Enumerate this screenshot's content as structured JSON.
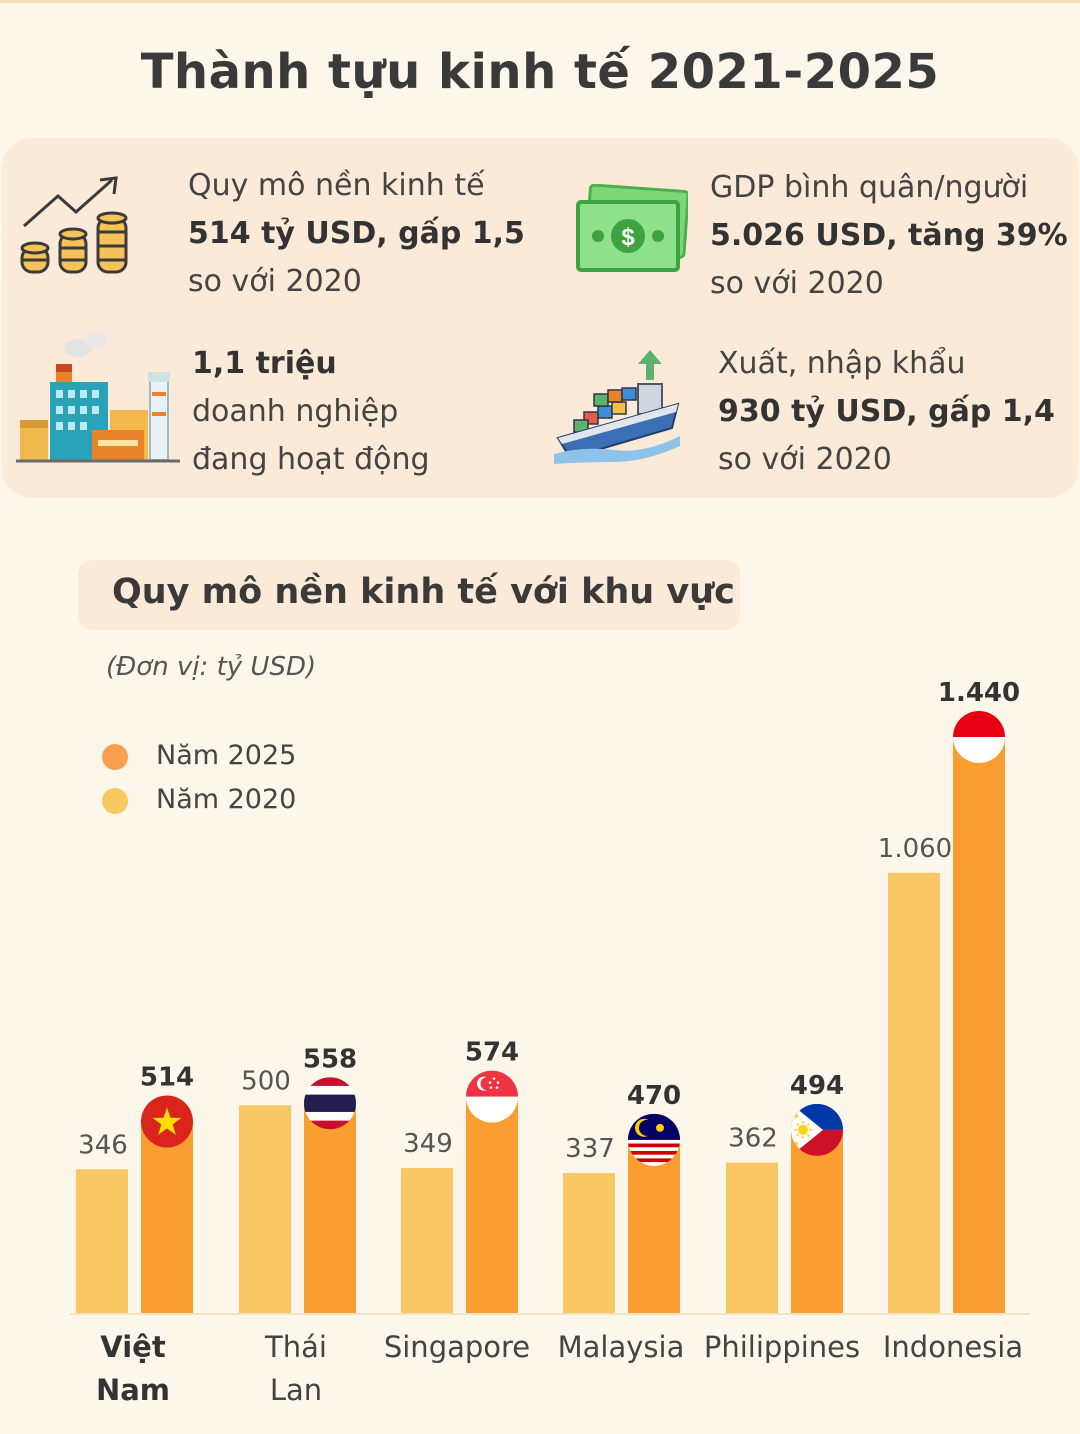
{
  "title": "Thành tựu kinh tế 2021-2025",
  "stats": [
    {
      "label": "Quy mô nền kinh tế",
      "value": "514 tỷ USD, gấp 1,5",
      "note": "so với 2020",
      "icon": "coins-growth-icon"
    },
    {
      "label": "GDP bình quân/người",
      "value": "5.026 USD, tăng 39%",
      "note": "so với 2020",
      "icon": "money-bill-icon"
    },
    {
      "label": "doanh nghiệp",
      "value": "1,1 triệu",
      "note": "đang hoạt động",
      "icon": "factory-icon"
    },
    {
      "label": "Xuất, nhập khẩu",
      "value": "930 tỷ USD, gấp 1,4",
      "note": "so với 2020",
      "icon": "cargo-ship-icon"
    }
  ],
  "chart_data": {
    "type": "bar",
    "title": "Quy mô nền kinh tế với khu vực",
    "unit": "(Đơn vị: tỷ USD)",
    "categories": [
      "Việt Nam",
      "Thái Lan",
      "Singapore",
      "Malaysia",
      "Philippines",
      "Indonesia"
    ],
    "category_lines": [
      [
        "Việt",
        "Nam"
      ],
      [
        "Thái",
        "Lan"
      ],
      [
        "Singapore"
      ],
      [
        "Malaysia"
      ],
      [
        "Philippines"
      ],
      [
        "Indonesia"
      ]
    ],
    "series": [
      {
        "name": "Năm 2020",
        "values": [
          346,
          500,
          349,
          337,
          362,
          1060
        ],
        "labels": [
          "346",
          "500",
          "349",
          "337",
          "362",
          "1.060"
        ],
        "color": "#f9c764"
      },
      {
        "name": "Năm 2025",
        "values": [
          514,
          558,
          574,
          470,
          494,
          1440
        ],
        "labels": [
          "514",
          "558",
          "574",
          "470",
          "494",
          "1.440"
        ],
        "color": "#fa9e32"
      }
    ],
    "ylim": [
      0,
      1440
    ],
    "legend": "top-left",
    "flags": [
      "vietnam-flag-icon",
      "thailand-flag-icon",
      "singapore-flag-icon",
      "malaysia-flag-icon",
      "philippines-flag-icon",
      "indonesia-flag-icon"
    ]
  },
  "colors": {
    "bar_2020": "#f9c764",
    "bar_2025": "#fa9e32",
    "panel": "#fbead8",
    "background": "#fdf6ea"
  }
}
